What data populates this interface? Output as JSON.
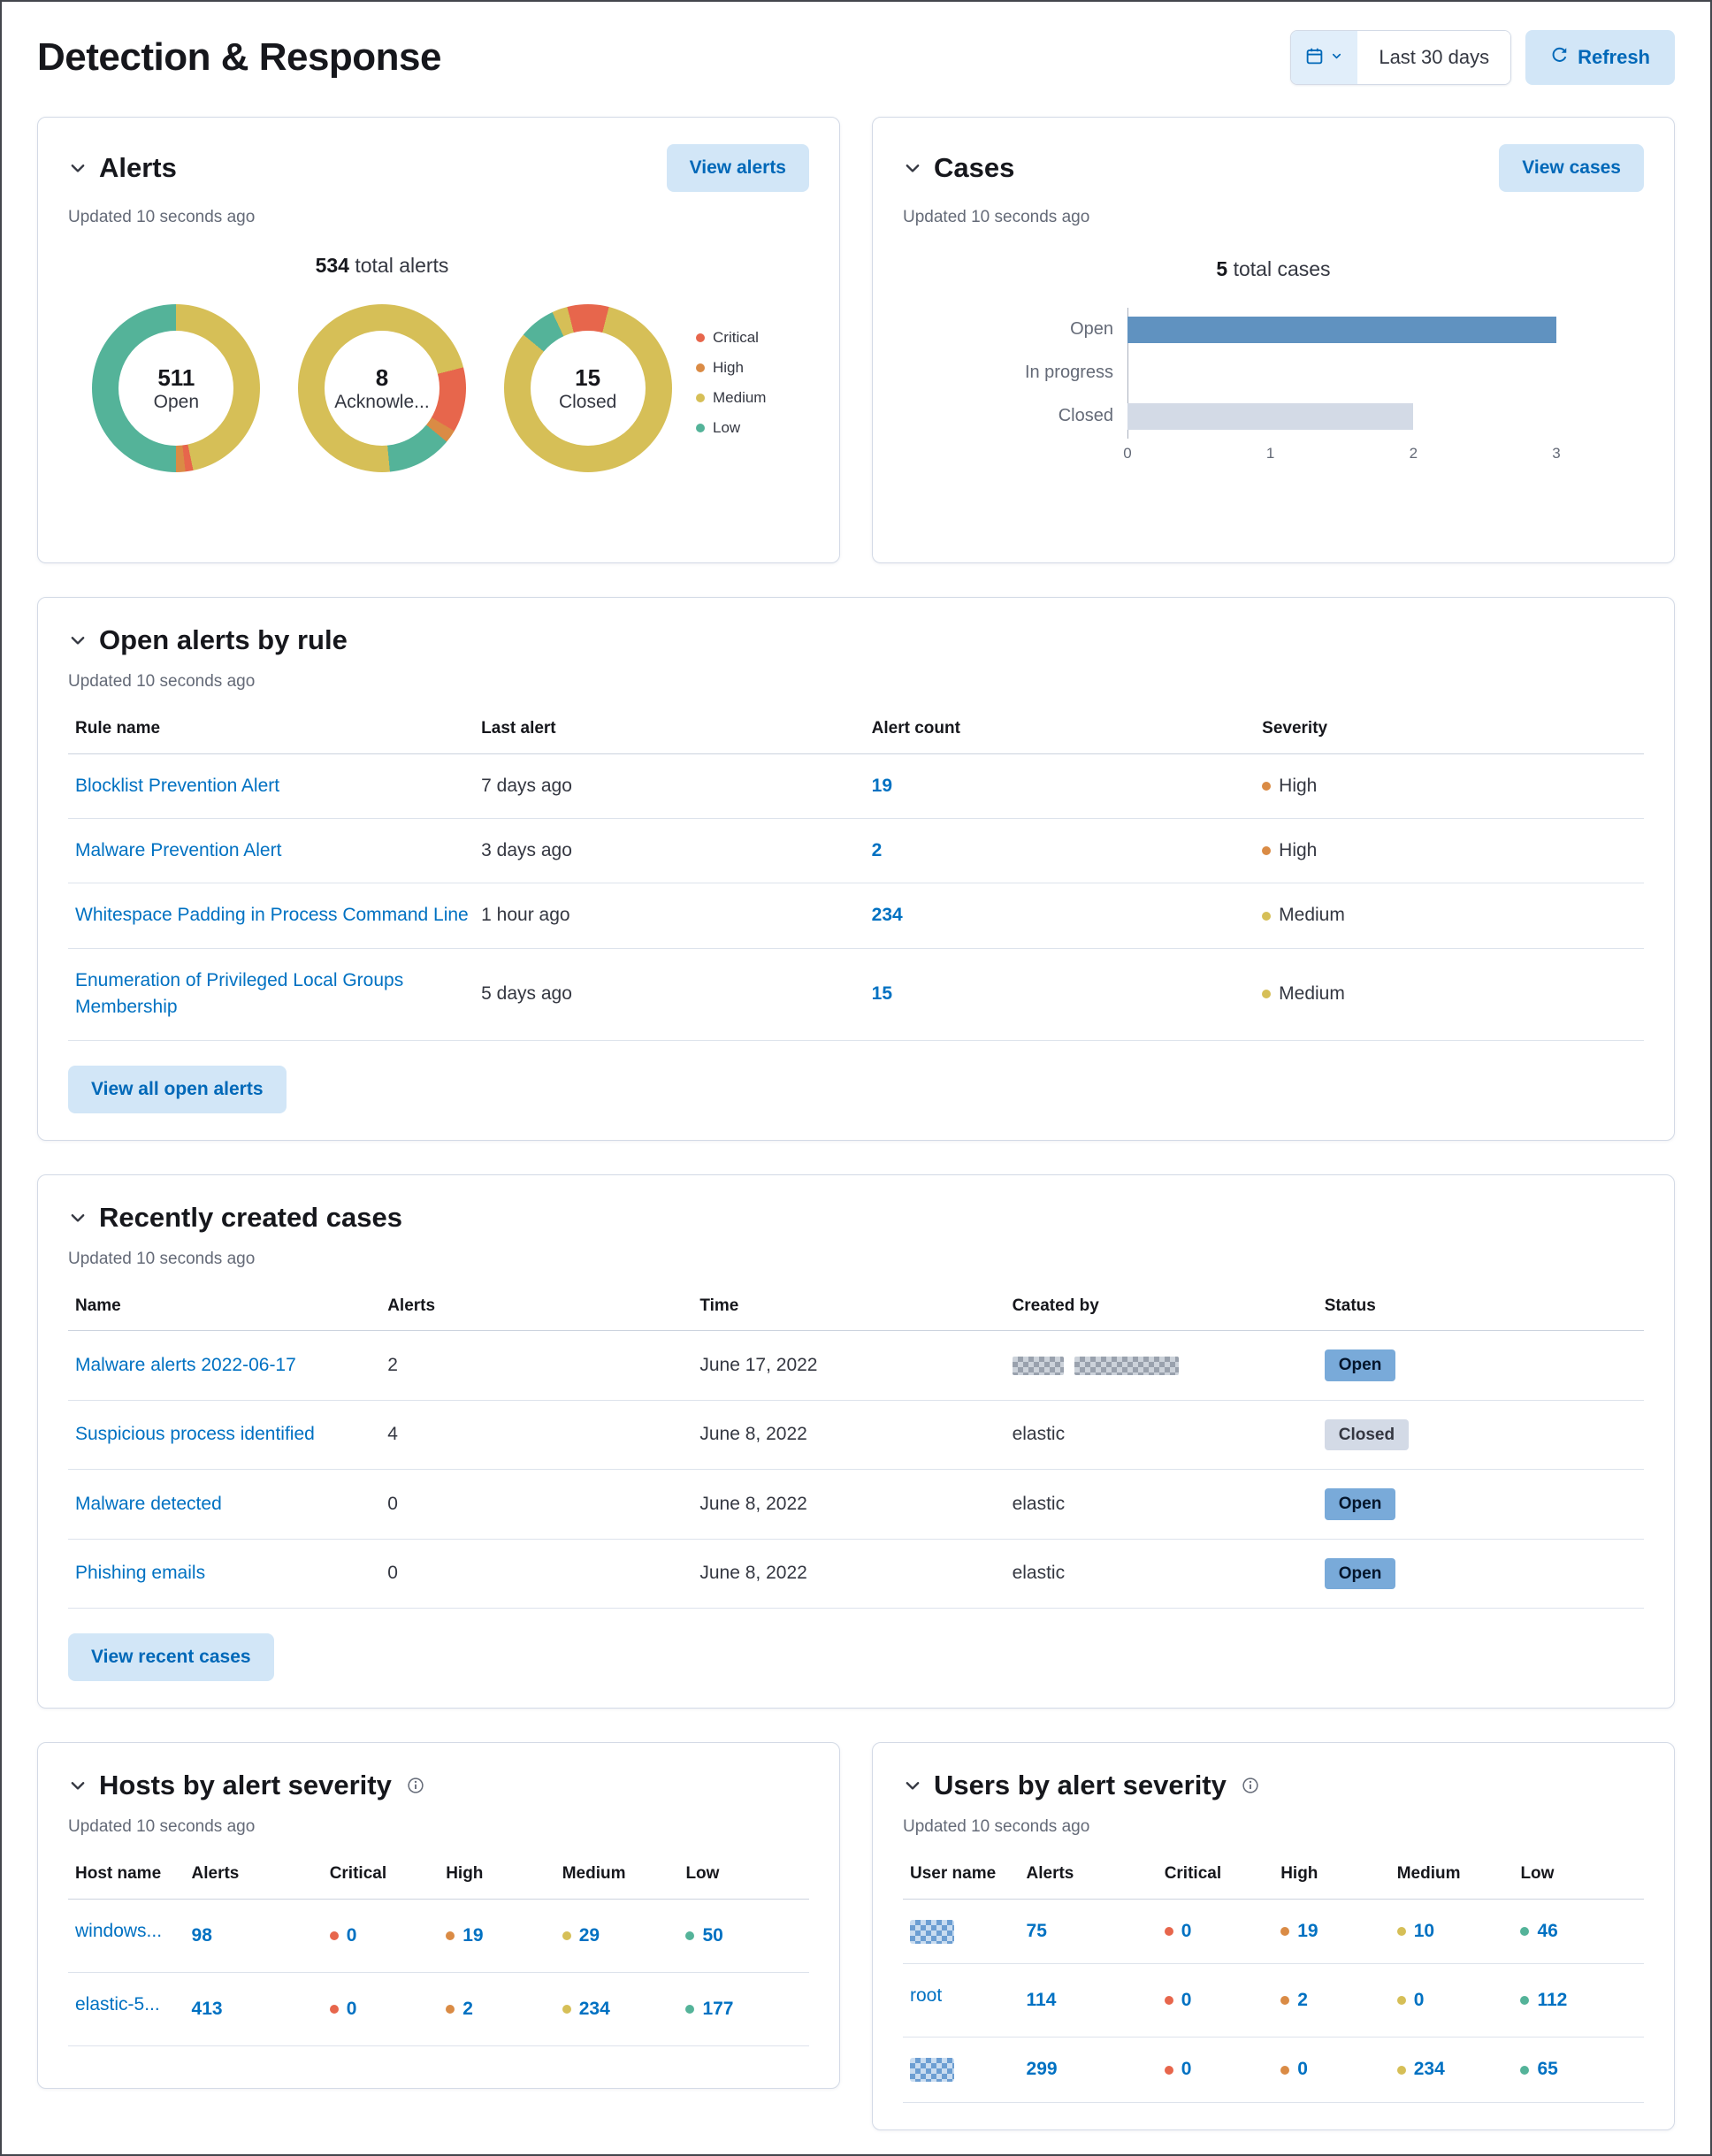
{
  "palette": {
    "critical": "#E7664C",
    "high": "#DA8B45",
    "medium": "#D6BF57",
    "low": "#54B399",
    "bar_open": "#6092C0",
    "bar_closed": "#D3DAE6"
  },
  "header": {
    "title": "Detection & Response",
    "date_range": "Last 30 days",
    "refresh_label": "Refresh"
  },
  "alerts_panel": {
    "title": "Alerts",
    "updated": "Updated 10 seconds ago",
    "view_button": "View alerts",
    "total_value": "534",
    "total_label": "total alerts",
    "legend": [
      {
        "key": "critical",
        "label": "Critical"
      },
      {
        "key": "high",
        "label": "High"
      },
      {
        "key": "medium",
        "label": "Medium"
      },
      {
        "key": "low",
        "label": "Low"
      }
    ],
    "chart_data": {
      "type": "pie",
      "donuts": [
        {
          "value": "511",
          "label": "Open",
          "segments": [
            [
              "medium",
              46.7
            ],
            [
              "critical",
              1.5
            ],
            [
              "high",
              1.8
            ],
            [
              "low",
              50
            ]
          ]
        },
        {
          "value": "8",
          "label": "Acknowle...",
          "segments": [
            [
              "medium",
              21
            ],
            [
              "critical",
              12.5
            ],
            [
              "high",
              2.5
            ],
            [
              "low",
              12.5
            ],
            [
              "medium",
              51.5
            ]
          ]
        },
        {
          "value": "15",
          "label": "Closed",
          "segments": [
            [
              "critical",
              4
            ],
            [
              "medium",
              82
            ],
            [
              "low",
              7
            ],
            [
              "medium",
              3
            ],
            [
              "critical",
              4
            ]
          ]
        }
      ]
    }
  },
  "cases_panel": {
    "title": "Cases",
    "updated": "Updated 10 seconds ago",
    "view_button": "View cases",
    "total_value": "5",
    "total_label": "total cases",
    "chart_data": {
      "type": "bar",
      "orientation": "horizontal",
      "categories": [
        "Open",
        "In progress",
        "Closed"
      ],
      "values": [
        3,
        0,
        2
      ],
      "colors": [
        "bar_open",
        "bar_open",
        "bar_closed"
      ],
      "xlim": [
        0,
        3
      ],
      "ticks": [
        0,
        1,
        2,
        3
      ]
    }
  },
  "open_alerts_panel": {
    "title": "Open alerts by rule",
    "updated": "Updated 10 seconds ago",
    "columns": [
      "Rule name",
      "Last alert",
      "Alert count",
      "Severity"
    ],
    "rows": [
      {
        "rule": "Blocklist Prevention Alert",
        "last_alert": "7 days ago",
        "count": "19",
        "severity": "High",
        "severity_key": "high"
      },
      {
        "rule": "Malware Prevention Alert",
        "last_alert": "3 days ago",
        "count": "2",
        "severity": "High",
        "severity_key": "high"
      },
      {
        "rule": "Whitespace Padding in Process Command Line",
        "last_alert": "1 hour ago",
        "count": "234",
        "severity": "Medium",
        "severity_key": "medium"
      },
      {
        "rule": "Enumeration of Privileged Local Groups Membership",
        "last_alert": "5 days ago",
        "count": "15",
        "severity": "Medium",
        "severity_key": "medium"
      }
    ],
    "view_button": "View all open alerts"
  },
  "recent_cases_panel": {
    "title": "Recently created cases",
    "updated": "Updated 10 seconds ago",
    "columns": [
      "Name",
      "Alerts",
      "Time",
      "Created by",
      "Status"
    ],
    "rows": [
      {
        "name": "Malware alerts 2022-06-17",
        "alerts": "2",
        "time": "June 17, 2022",
        "created_by": "",
        "created_by_redacted": true,
        "status": "Open",
        "status_key": "open"
      },
      {
        "name": "Suspicious process identified",
        "alerts": "4",
        "time": "June 8, 2022",
        "created_by": "elastic",
        "status": "Closed",
        "status_key": "closed"
      },
      {
        "name": "Malware detected",
        "alerts": "0",
        "time": "June 8, 2022",
        "created_by": "elastic",
        "status": "Open",
        "status_key": "open"
      },
      {
        "name": "Phishing emails",
        "alerts": "0",
        "time": "June 8, 2022",
        "created_by": "elastic",
        "status": "Open",
        "status_key": "open"
      }
    ],
    "view_button": "View recent cases"
  },
  "hosts_panel": {
    "title": "Hosts by alert severity",
    "updated": "Updated 10 seconds ago",
    "columns": [
      "Host name",
      "Alerts",
      "Critical",
      "High",
      "Medium",
      "Low"
    ],
    "rows": [
      {
        "name": "windows...",
        "alerts": "98",
        "critical": "0",
        "high": "19",
        "medium": "29",
        "low": "50"
      },
      {
        "name": "elastic-5...",
        "alerts": "413",
        "critical": "0",
        "high": "2",
        "medium": "234",
        "low": "177"
      }
    ]
  },
  "users_panel": {
    "title": "Users by alert severity",
    "updated": "Updated 10 seconds ago",
    "columns": [
      "User name",
      "Alerts",
      "Critical",
      "High",
      "Medium",
      "Low"
    ],
    "rows": [
      {
        "name": "",
        "redacted": true,
        "alerts": "75",
        "critical": "0",
        "high": "19",
        "medium": "10",
        "low": "46"
      },
      {
        "name": "root",
        "alerts": "114",
        "critical": "0",
        "high": "2",
        "medium": "0",
        "low": "112"
      },
      {
        "name": "",
        "redacted": true,
        "alerts": "299",
        "critical": "0",
        "high": "0",
        "medium": "234",
        "low": "65"
      }
    ]
  }
}
